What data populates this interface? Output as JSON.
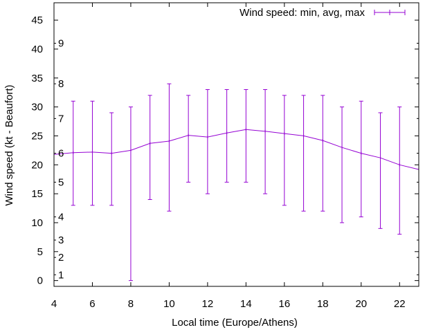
{
  "chart_data": {
    "type": "line",
    "title": "",
    "xlabel": "Local time (Europe/Athens)",
    "ylabel": "Wind speed (kt - Beaufort)",
    "xlim": [
      4,
      23
    ],
    "ylim": [
      -1,
      48
    ],
    "xticks": [
      "4",
      "6",
      "8",
      "10",
      "12",
      "14",
      "16",
      "18",
      "20",
      "22"
    ],
    "yticks": [
      "0",
      "5",
      "10",
      "15",
      "20",
      "25",
      "30",
      "35",
      "40",
      "45"
    ],
    "beaufort_scale": [
      {
        "label": "1",
        "value": 1
      },
      {
        "label": "2",
        "value": 4
      },
      {
        "label": "3",
        "value": 7
      },
      {
        "label": "4",
        "value": 11
      },
      {
        "label": "5",
        "value": 17
      },
      {
        "label": "6",
        "value": 22
      },
      {
        "label": "7",
        "value": 28
      },
      {
        "label": "8",
        "value": 34
      },
      {
        "label": "9",
        "value": 41
      }
    ],
    "legend": {
      "label": "Wind speed: min, avg, max",
      "position": "top-right"
    },
    "color": "#9400d3",
    "series": [
      {
        "name": "Wind speed: min, avg, max",
        "x": [
          4,
          5,
          6,
          7,
          8,
          9,
          10,
          11,
          12,
          13,
          14,
          15,
          16,
          17,
          18,
          19,
          20,
          21,
          22,
          23
        ],
        "avg": [
          21.8,
          22.1,
          22.2,
          22,
          22.5,
          23.7,
          24.1,
          25.1,
          24.8,
          25.5,
          26.1,
          25.8,
          25.4,
          25,
          24.2,
          23,
          22,
          21.2,
          20,
          19.2
        ],
        "min": [
          null,
          13,
          13,
          13,
          0,
          14,
          12,
          17,
          15,
          17,
          17,
          15,
          13,
          12,
          12,
          10,
          11,
          9,
          8,
          null
        ],
        "max": [
          null,
          31,
          31,
          29,
          30,
          32,
          34,
          32,
          33,
          33,
          33,
          33,
          32,
          32,
          32,
          30,
          31,
          29,
          30,
          null
        ]
      }
    ]
  }
}
